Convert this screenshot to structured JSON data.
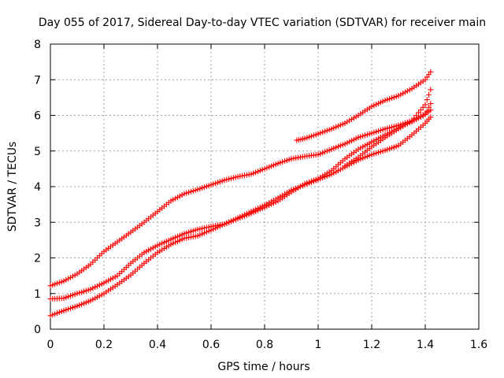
{
  "chart_data": {
    "type": "scatter",
    "title": "Day 055 of 2017, Sidereal Day-to-day VTEC variation (SDTVAR) for receiver main",
    "xlabel": "GPS time / hours",
    "ylabel": "SDTVAR / TECUs",
    "xlim": [
      0,
      1.6
    ],
    "ylim": [
      0,
      8
    ],
    "xticks": [
      "0",
      "0.2",
      "0.4",
      "0.6",
      "0.8",
      "1",
      "1.2",
      "1.4",
      "1.6"
    ],
    "yticks": [
      "0",
      "1",
      "2",
      "3",
      "4",
      "5",
      "6",
      "7",
      "8"
    ],
    "grid": true,
    "marker": "+",
    "color": "#ff0000",
    "series": [
      {
        "points": [
          [
            0,
            1.22
          ],
          [
            0.05,
            1.35
          ],
          [
            0.1,
            1.55
          ],
          [
            0.15,
            1.82
          ],
          [
            0.2,
            2.18
          ],
          [
            0.25,
            2.45
          ],
          [
            0.3,
            2.72
          ],
          [
            0.35,
            3.0
          ],
          [
            0.4,
            3.3
          ],
          [
            0.45,
            3.6
          ],
          [
            0.5,
            3.8
          ],
          [
            0.55,
            3.92
          ],
          [
            0.6,
            4.05
          ],
          [
            0.65,
            4.18
          ],
          [
            0.7,
            4.28
          ],
          [
            0.75,
            4.35
          ],
          [
            0.8,
            4.5
          ],
          [
            0.85,
            4.65
          ],
          [
            0.9,
            4.78
          ],
          [
            0.95,
            4.85
          ],
          [
            1.0,
            4.9
          ],
          [
            1.05,
            5.05
          ],
          [
            1.1,
            5.2
          ],
          [
            1.15,
            5.38
          ],
          [
            1.2,
            5.5
          ],
          [
            1.25,
            5.62
          ],
          [
            1.3,
            5.72
          ],
          [
            1.35,
            5.85
          ],
          [
            1.4,
            6.05
          ],
          [
            1.42,
            6.15
          ]
        ]
      },
      {
        "points": [
          [
            0,
            0.85
          ],
          [
            0.05,
            0.87
          ],
          [
            0.1,
            1.0
          ],
          [
            0.15,
            1.12
          ],
          [
            0.2,
            1.3
          ],
          [
            0.25,
            1.5
          ],
          [
            0.3,
            1.85
          ],
          [
            0.35,
            2.15
          ],
          [
            0.4,
            2.35
          ],
          [
            0.45,
            2.52
          ],
          [
            0.5,
            2.68
          ],
          [
            0.55,
            2.8
          ],
          [
            0.6,
            2.88
          ],
          [
            0.65,
            2.95
          ],
          [
            0.7,
            3.1
          ],
          [
            0.75,
            3.25
          ],
          [
            0.8,
            3.42
          ],
          [
            0.85,
            3.6
          ],
          [
            0.9,
            3.85
          ],
          [
            0.95,
            4.08
          ],
          [
            1.0,
            4.22
          ],
          [
            1.05,
            4.45
          ],
          [
            1.1,
            4.78
          ],
          [
            1.15,
            5.05
          ],
          [
            1.2,
            5.25
          ],
          [
            1.25,
            5.45
          ],
          [
            1.3,
            5.65
          ],
          [
            1.35,
            5.82
          ],
          [
            1.4,
            6.02
          ],
          [
            1.42,
            6.33
          ]
        ]
      },
      {
        "points": [
          [
            0,
            0.38
          ],
          [
            0.05,
            0.52
          ],
          [
            0.1,
            0.65
          ],
          [
            0.15,
            0.8
          ],
          [
            0.2,
            1.0
          ],
          [
            0.25,
            1.25
          ],
          [
            0.3,
            1.52
          ],
          [
            0.35,
            1.85
          ],
          [
            0.4,
            2.15
          ],
          [
            0.45,
            2.38
          ],
          [
            0.5,
            2.55
          ],
          [
            0.55,
            2.62
          ],
          [
            0.6,
            2.78
          ],
          [
            0.65,
            2.95
          ],
          [
            0.7,
            3.12
          ],
          [
            0.75,
            3.3
          ],
          [
            0.8,
            3.48
          ],
          [
            0.85,
            3.68
          ],
          [
            0.9,
            3.9
          ],
          [
            0.95,
            4.05
          ],
          [
            1.0,
            4.2
          ],
          [
            1.05,
            4.35
          ],
          [
            1.1,
            4.55
          ],
          [
            1.15,
            4.75
          ],
          [
            1.2,
            4.9
          ],
          [
            1.25,
            5.02
          ],
          [
            1.3,
            5.15
          ],
          [
            1.35,
            5.45
          ],
          [
            1.4,
            5.78
          ],
          [
            1.42,
            5.95
          ]
        ]
      },
      {
        "points": [
          [
            0.92,
            5.3
          ],
          [
            0.95,
            5.35
          ],
          [
            1.0,
            5.48
          ],
          [
            1.05,
            5.62
          ],
          [
            1.1,
            5.78
          ],
          [
            1.15,
            6.0
          ],
          [
            1.2,
            6.25
          ],
          [
            1.25,
            6.42
          ],
          [
            1.3,
            6.55
          ],
          [
            1.35,
            6.75
          ],
          [
            1.4,
            7.0
          ],
          [
            1.42,
            7.22
          ]
        ]
      },
      {
        "points": [
          [
            1.1,
            4.58
          ],
          [
            1.15,
            4.82
          ],
          [
            1.2,
            5.12
          ],
          [
            1.25,
            5.38
          ],
          [
            1.3,
            5.62
          ],
          [
            1.35,
            5.85
          ],
          [
            1.4,
            6.3
          ],
          [
            1.42,
            6.72
          ]
        ]
      }
    ]
  }
}
